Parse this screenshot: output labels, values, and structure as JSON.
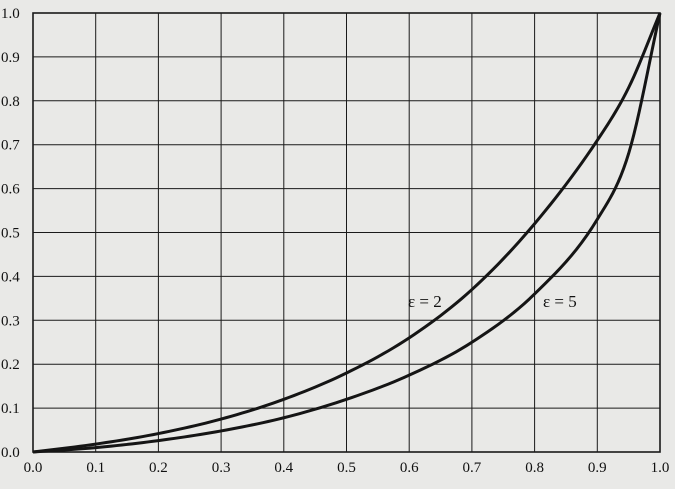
{
  "chart_data": {
    "type": "line",
    "title": "",
    "xlabel": "",
    "ylabel": "",
    "xlim": [
      0.0,
      1.0
    ],
    "ylim": [
      0.0,
      1.0
    ],
    "grid": true,
    "legend": "inline labels",
    "x_ticks": [
      "0.0",
      "0.1",
      "0.2",
      "0.3",
      "0.4",
      "0.5",
      "0.6",
      "0.7",
      "0.8",
      "0.9",
      "1.0"
    ],
    "y_ticks": [
      "0.0",
      "0.1",
      "0.2",
      "0.3",
      "0.4",
      "0.5",
      "0.6",
      "0.7",
      "0.8",
      "0.9",
      "1.0"
    ],
    "x": [
      0.0,
      0.1,
      0.2,
      0.3,
      0.4,
      0.5,
      0.6,
      0.7,
      0.8,
      0.9,
      0.95,
      1.0
    ],
    "series": [
      {
        "name": "ε = 2",
        "values": [
          0.0,
          0.018,
          0.042,
          0.075,
          0.12,
          0.18,
          0.26,
          0.37,
          0.52,
          0.71,
          0.83,
          1.0
        ]
      },
      {
        "name": "ε = 5",
        "values": [
          0.0,
          0.01,
          0.026,
          0.048,
          0.078,
          0.12,
          0.175,
          0.25,
          0.36,
          0.53,
          0.68,
          1.0
        ]
      }
    ],
    "colors": {
      "line": "#151515",
      "grid": "#1a1a1a",
      "background": "#e9e9e7"
    }
  }
}
